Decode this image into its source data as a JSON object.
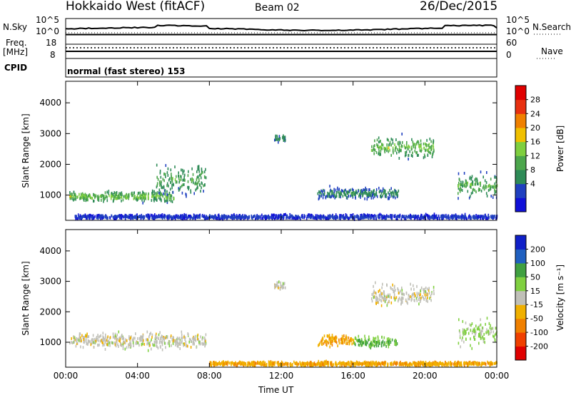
{
  "header": {
    "title": "Hokkaido West (fitACF)",
    "beam": "Beam 02",
    "date": "26/Dec/2015"
  },
  "top_panels": {
    "nsky_label": "N.Sky",
    "nsky_ticks": [
      "10^5",
      "10^0"
    ],
    "nsearch_label": "N.Search",
    "nsearch_ticks": [
      "10^5",
      "10^0"
    ],
    "freq_label": "Freq.",
    "freq_unit": "[MHz]",
    "freq_ticks": [
      "18",
      "8"
    ],
    "nave_label": "Nave",
    "nave_ticks": [
      "60",
      "0"
    ],
    "cpid_label": "CPID",
    "cpid_text": "normal (fast stereo) 153"
  },
  "colors": {
    "power_scale": [
      "#1010d8",
      "#2040c0",
      "#2e8b57",
      "#4ca64c",
      "#7fcf3f",
      "#f0c000",
      "#f08000",
      "#e83010",
      "#e00000"
    ],
    "velocity_scale": [
      "#e00000",
      "#f04000",
      "#f08000",
      "#f0b000",
      "#c0c0b8",
      "#80d040",
      "#40a040",
      "#2060c0",
      "#1020c8"
    ]
  },
  "chart_data": [
    {
      "type": "heatmap",
      "name": "power",
      "ylabel": "Slant Range [km]",
      "xlabel": "",
      "x_ticks": [
        "00:00",
        "04:00",
        "08:00",
        "12:00",
        "16:00",
        "20:00",
        "00:00"
      ],
      "y_ticks": [
        1000,
        2000,
        3000,
        4000
      ],
      "ylim": [
        180,
        4700
      ],
      "xlim_hours": [
        0,
        24
      ],
      "colorbar_label": "Power [dB]",
      "colorbar_ticks": [
        "28",
        "24",
        "20",
        "16",
        "12",
        "8",
        "4"
      ],
      "regions": [
        {
          "t_start": 0.2,
          "t_end": 6.0,
          "r_center": 950,
          "r_spread": 220,
          "power_peak": 22,
          "power_floor": 8
        },
        {
          "t_start": 5.0,
          "t_end": 7.8,
          "r_center": 1500,
          "r_spread": 700,
          "power_peak": 18,
          "power_floor": 6
        },
        {
          "t_start": 11.6,
          "t_end": 12.2,
          "r_center": 2850,
          "r_spread": 200,
          "power_peak": 14,
          "power_floor": 6
        },
        {
          "t_start": 14.0,
          "t_end": 18.5,
          "r_center": 1050,
          "r_spread": 250,
          "power_peak": 14,
          "power_floor": 6
        },
        {
          "t_start": 17.0,
          "t_end": 20.5,
          "r_center": 2550,
          "r_spread": 450,
          "power_peak": 22,
          "power_floor": 8
        },
        {
          "t_start": 21.8,
          "t_end": 24.0,
          "r_center": 1300,
          "r_spread": 550,
          "power_peak": 20,
          "power_floor": 6
        },
        {
          "t_start": 0.5,
          "t_end": 24.0,
          "r_center": 290,
          "r_spread": 100,
          "power_peak": 8,
          "power_floor": 4
        }
      ]
    },
    {
      "type": "heatmap",
      "name": "velocity",
      "ylabel": "Slant Range [km]",
      "xlabel": "Time UT",
      "x_ticks": [
        "00:00",
        "04:00",
        "08:00",
        "12:00",
        "16:00",
        "20:00",
        "00:00"
      ],
      "y_ticks": [
        1000,
        2000,
        3000,
        4000
      ],
      "ylim": [
        180,
        4700
      ],
      "xlim_hours": [
        0,
        24
      ],
      "colorbar_label": "Velocity [m s⁻¹]",
      "colorbar_ticks": [
        "200",
        "100",
        "50",
        "15",
        "-15",
        "-50",
        "-100",
        "-200"
      ],
      "regions": [
        {
          "t_start": 0.2,
          "t_end": 7.8,
          "r_center": 1050,
          "r_spread": 350,
          "velocity": 0
        },
        {
          "t_start": 11.6,
          "t_end": 12.2,
          "r_center": 2850,
          "r_spread": 200,
          "velocity": 0
        },
        {
          "t_start": 14.0,
          "t_end": 16.0,
          "r_center": 1050,
          "r_spread": 250,
          "velocity": -40
        },
        {
          "t_start": 16.0,
          "t_end": 18.5,
          "r_center": 1000,
          "r_spread": 250,
          "velocity": 50
        },
        {
          "t_start": 17.0,
          "t_end": 20.5,
          "r_center": 2550,
          "r_spread": 450,
          "velocity": 0
        },
        {
          "t_start": 21.8,
          "t_end": 24.0,
          "r_center": 1300,
          "r_spread": 550,
          "velocity": 20
        },
        {
          "t_start": 8.0,
          "t_end": 24.0,
          "r_center": 290,
          "r_spread": 100,
          "velocity": -40
        }
      ]
    }
  ]
}
